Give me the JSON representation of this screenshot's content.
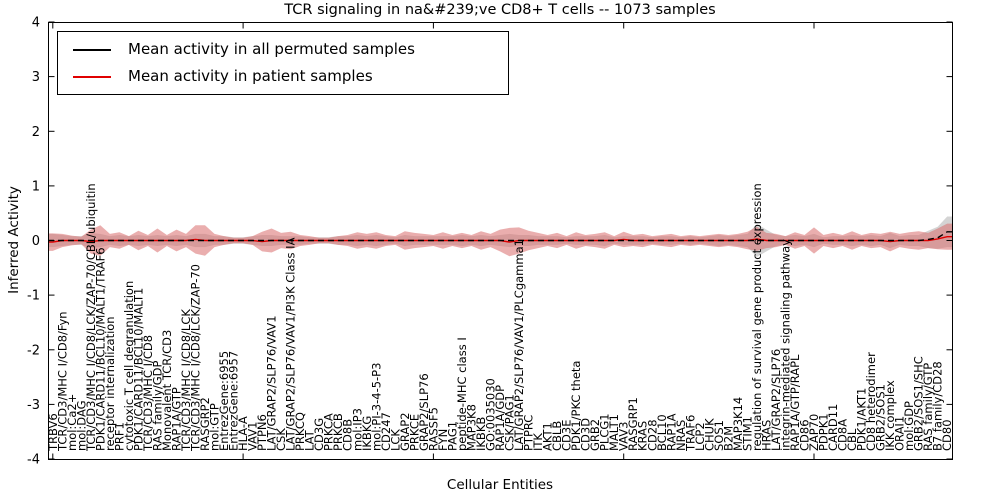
{
  "figure": {
    "title": "TCR signaling in na&#239;ve CD8+ T cells -- 1073 samples",
    "xlabel": "Cellular Entities",
    "ylabel": "Inferred Activity",
    "background_color": "#ffffff",
    "frame_color": "#000000"
  },
  "legend": {
    "position": "upper left",
    "entries": [
      {
        "label": "Mean activity in all permuted samples",
        "color": "#000000"
      },
      {
        "label": "Mean activity in patient samples",
        "color": "#e00000"
      }
    ]
  },
  "chart_data": {
    "type": "line",
    "title": "TCR signaling in na&#239;ve CD8+ T cells -- 1073 samples",
    "xlabel": "Cellular Entities",
    "ylabel": "Inferred Activity",
    "ylim": [
      -4,
      4
    ],
    "yticks": [
      "4",
      "3",
      "2",
      "1",
      "0",
      "-1",
      "-2",
      "-3",
      "-4"
    ],
    "ytick_values": [
      4,
      3,
      2,
      1,
      0,
      -1,
      -2,
      -3,
      -4
    ],
    "xtick_major_indices": [
      0,
      20,
      40,
      60,
      80
    ],
    "grid": false,
    "legend_position": "upper left",
    "categories": [
      "TRBV6",
      "TCR/CD3/MHC I/CD8/Fyn",
      "mol:Ca2+",
      "mol:DAG",
      "TCR/CD3/MHC I/CD8/LCK/ZAP-70/CBL/ubiquitin",
      "PDK1/CARD11/BCL10/MALT1/TRAF6",
      "receptor internalization",
      "PRF1",
      "cytotoxic T cell degranulation",
      "PDK1/CARD11/BCL10/MALT1",
      "TCR/CD3/MHC I/CD8",
      "RAS family/GDP",
      "Monovalent TCR/CD3",
      "RAP1A/GTP",
      "TCR/CD3/MHC I/CD8/LCK",
      "TCR/CD3/MHC I/CD8/LCK/ZAP-70",
      "RASGRP2",
      "mol:GTP",
      "EntrezGene:6955",
      "EntrezGene:6957",
      "HLA-A",
      "VAV1",
      "PTPN6",
      "LAT/GRAP2/SLP76/VAV1",
      "CSK",
      "LAT/GRAP2/SLP76/VAV1/PI3K Class IA",
      "PRKCQ",
      "LAT",
      "CD3G",
      "PRKCA",
      "PRKCB",
      "CD8B",
      "mol:IP3",
      "IKBKG",
      "mol:PI-3-4-5-P3",
      "CD247",
      "LCK",
      "GRAP2",
      "PRKCE",
      "GRAP2/SLP76",
      "RASSF5",
      "FYN",
      "PAG1",
      "peptide-MHC class I",
      "MAP3K8",
      "IKBKB",
      "GO:0035030",
      "RAP1A/GDP",
      "CSK/PAG1",
      "LAT/GRAP2/SLP76/VAV1/PLCgamma1",
      "PTPRC",
      "ITK",
      "AKT1",
      "CBLB",
      "CD3E",
      "PDK1/PKC theta",
      "CD3D",
      "GRB2",
      "PLCG1",
      "MALT1",
      "VAV3",
      "RASGRP1",
      "KRAS",
      "CD28",
      "BCL10",
      "RAP1A",
      "NRAS",
      "TRAF6",
      "LCP2",
      "CHUK",
      "SOS1",
      "B2M",
      "MAP3K14",
      "STIM1",
      "regulation of survival gene product expression",
      "HRAS",
      "LAT/GRAP2/SLP76",
      "integrin-mediated signaling pathway",
      "RAP1A/GTP/RAPL",
      "CD86",
      "ZAP70",
      "PDPK1",
      "CARD11",
      "CD8A",
      "CBL",
      "PDK1/AKT1",
      "CD8 heterodimer",
      "GRB2/SOS1",
      "IKK complex",
      "ORAI1",
      "mol:GDP",
      "GRB2/SOS1/SHC",
      "RAS family/GTP",
      "B7 family/CD28",
      "CD80"
    ],
    "series": [
      {
        "name": "Mean activity in all permuted samples",
        "color": "#000000",
        "line_style": "dashed",
        "band_color": "#c9c9c9",
        "band_opacity": 0.8,
        "values": [
          0,
          0,
          0,
          0,
          0,
          0,
          0,
          0,
          0,
          0,
          0,
          0,
          0,
          0,
          0,
          0,
          0,
          0,
          0,
          0,
          0,
          0,
          0,
          0,
          0,
          0,
          0,
          0,
          0,
          0,
          0,
          0,
          0,
          0,
          0,
          0,
          0,
          0,
          0,
          0,
          0,
          0,
          0,
          0,
          0,
          0,
          0,
          0,
          0,
          0,
          0,
          0,
          0,
          0,
          0,
          0,
          0,
          0,
          0,
          0,
          0,
          0,
          0,
          0,
          0,
          0,
          0,
          0,
          0,
          0,
          0,
          0,
          0,
          0,
          0,
          0,
          0,
          0,
          0,
          0,
          0,
          0,
          0,
          0,
          0,
          0,
          0,
          0,
          0,
          0,
          0,
          0,
          0.02,
          0.05,
          0.16
        ],
        "band_half_width": [
          0.12,
          0.1,
          0.08,
          0.08,
          0.14,
          0.12,
          0.08,
          0.1,
          0.08,
          0.1,
          0.08,
          0.1,
          0.08,
          0.1,
          0.08,
          0.12,
          0.12,
          0.08,
          0.08,
          0.06,
          0.06,
          0.08,
          0.1,
          0.1,
          0.08,
          0.08,
          0.08,
          0.06,
          0.06,
          0.06,
          0.08,
          0.08,
          0.1,
          0.08,
          0.1,
          0.08,
          0.06,
          0.1,
          0.08,
          0.08,
          0.08,
          0.08,
          0.08,
          0.1,
          0.08,
          0.1,
          0.08,
          0.1,
          0.12,
          0.1,
          0.1,
          0.08,
          0.08,
          0.08,
          0.06,
          0.08,
          0.08,
          0.08,
          0.1,
          0.06,
          0.08,
          0.08,
          0.08,
          0.06,
          0.08,
          0.08,
          0.06,
          0.08,
          0.06,
          0.08,
          0.1,
          0.08,
          0.1,
          0.12,
          0.3,
          0.2,
          0.1,
          0.08,
          0.1,
          0.08,
          0.12,
          0.06,
          0.08,
          0.08,
          0.1,
          0.08,
          0.1,
          0.08,
          0.14,
          0.08,
          0.1,
          0.1,
          0.16,
          0.2,
          0.28
        ]
      },
      {
        "name": "Mean activity in patient samples",
        "color": "#e00000",
        "line_style": "solid",
        "band_color": "#d96c6c",
        "band_opacity": 0.55,
        "values": [
          -0.03,
          0,
          0,
          0,
          -0.02,
          0,
          0,
          0,
          0,
          0,
          0,
          0,
          0,
          0,
          0,
          0.02,
          0,
          0,
          0,
          0,
          0,
          0,
          -0.02,
          0,
          0,
          0,
          0,
          0,
          0,
          0,
          0,
          0,
          0,
          0,
          0,
          0,
          0,
          0,
          0,
          0,
          0,
          0,
          0,
          0,
          0,
          0,
          0,
          0,
          -0.03,
          0,
          0,
          0,
          0,
          0,
          0,
          0,
          0,
          0,
          0,
          0,
          0.02,
          0,
          0,
          0,
          0,
          0,
          0,
          0,
          0,
          0,
          0,
          0,
          0,
          0,
          0.03,
          0,
          0,
          0,
          0,
          0,
          0,
          0,
          0,
          0,
          0,
          0,
          0,
          0,
          -0.02,
          0,
          0,
          0,
          0,
          0.03,
          0.07
        ],
        "band_half_width": [
          0.16,
          0.12,
          0.09,
          0.07,
          0.22,
          0.28,
          0.12,
          0.15,
          0.08,
          0.18,
          0.1,
          0.22,
          0.1,
          0.2,
          0.12,
          0.26,
          0.28,
          0.12,
          0.08,
          0.05,
          0.05,
          0.08,
          0.18,
          0.22,
          0.14,
          0.16,
          0.1,
          0.08,
          0.05,
          0.05,
          0.08,
          0.1,
          0.15,
          0.12,
          0.15,
          0.1,
          0.08,
          0.17,
          0.14,
          0.12,
          0.1,
          0.15,
          0.1,
          0.14,
          0.1,
          0.17,
          0.12,
          0.2,
          0.26,
          0.24,
          0.18,
          0.14,
          0.1,
          0.14,
          0.08,
          0.15,
          0.1,
          0.12,
          0.15,
          0.08,
          0.14,
          0.1,
          0.12,
          0.08,
          0.1,
          0.12,
          0.08,
          0.1,
          0.08,
          0.1,
          0.12,
          0.1,
          0.12,
          0.16,
          0.22,
          0.14,
          0.12,
          0.08,
          0.15,
          0.1,
          0.24,
          0.1,
          0.14,
          0.1,
          0.17,
          0.1,
          0.14,
          0.12,
          0.18,
          0.12,
          0.15,
          0.17,
          0.14,
          0.19,
          0.24
        ]
      }
    ]
  }
}
